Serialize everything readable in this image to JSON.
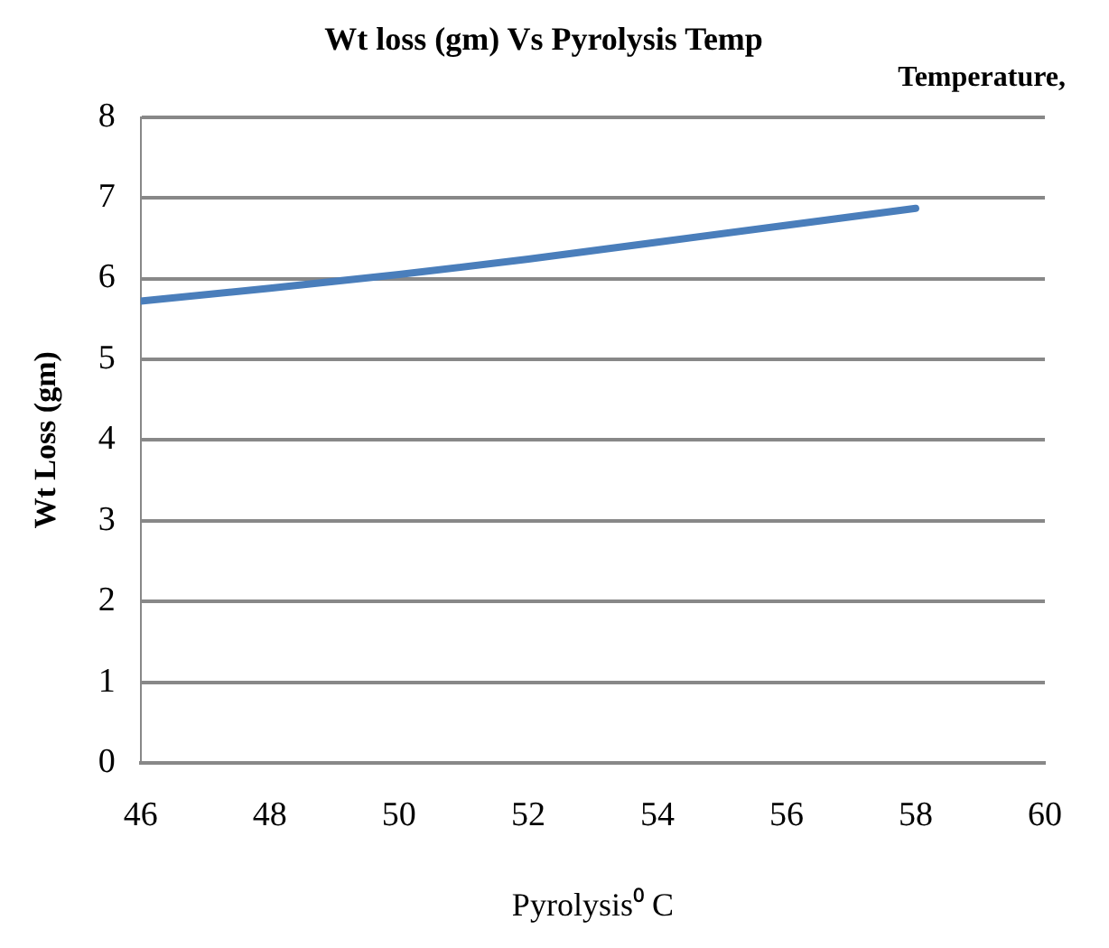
{
  "chart_data": {
    "type": "line",
    "title": "Wt loss (gm) Vs Pyrolysis Temp",
    "subtitle": "Temperature,",
    "xlabel": "Pyrolysis⁰ C",
    "ylabel": "Wt Loss (gm)",
    "x": [
      46,
      48,
      50,
      52,
      54,
      56,
      58
    ],
    "series": [
      {
        "color": "#4a7ebb",
        "values": [
          5.72,
          5.88,
          6.05,
          6.24,
          6.45,
          6.66,
          6.87
        ]
      }
    ],
    "xlim": [
      46,
      60
    ],
    "xticks": [
      46,
      48,
      50,
      52,
      54,
      56,
      58,
      60
    ],
    "ylim": [
      0,
      8
    ],
    "yticks": [
      0,
      1,
      2,
      3,
      4,
      5,
      6,
      7,
      8
    ],
    "grid": "y",
    "legend": false,
    "marker": "none",
    "line_style": "solid"
  }
}
